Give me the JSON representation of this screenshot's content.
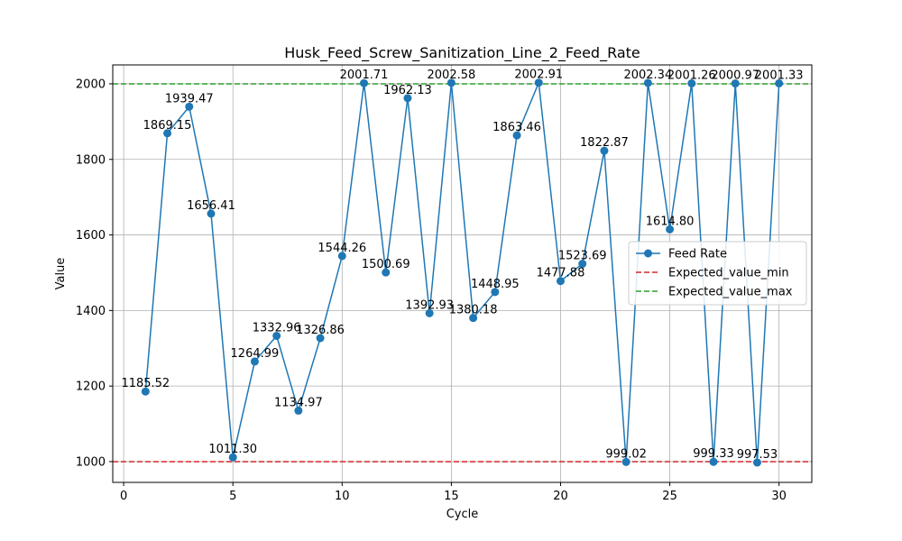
{
  "chart_data": {
    "type": "line",
    "title": "Husk_Feed_Screw_Sanitization_Line_2_Feed_Rate",
    "xlabel": "Cycle",
    "ylabel": "Value",
    "xlim": [
      -0.5,
      31.5
    ],
    "ylim": [
      945,
      2050
    ],
    "xticks": [
      0,
      5,
      10,
      15,
      20,
      25,
      30
    ],
    "yticks": [
      1000,
      1200,
      1400,
      1600,
      1800,
      2000
    ],
    "grid": true,
    "legend_position": "center-right",
    "series": [
      {
        "name": "Feed Rate",
        "color": "#1f77b4",
        "marker": "circle",
        "x": [
          1,
          2,
          3,
          4,
          5,
          6,
          7,
          8,
          9,
          10,
          11,
          12,
          13,
          14,
          15,
          16,
          17,
          18,
          19,
          20,
          21,
          22,
          23,
          24,
          25,
          26,
          27,
          28,
          29,
          30
        ],
        "values": [
          1185.52,
          1869.15,
          1939.47,
          1656.41,
          1011.3,
          1264.99,
          1332.96,
          1134.97,
          1326.86,
          1544.26,
          2001.71,
          1500.69,
          1962.13,
          1392.93,
          2002.58,
          1380.18,
          1448.95,
          1863.46,
          2002.91,
          1477.88,
          1523.69,
          1822.87,
          999.02,
          2002.34,
          1614.8,
          2001.26,
          999.33,
          2000.97,
          997.53,
          2001.33
        ],
        "labels": [
          "1185.52",
          "1869.15",
          "1939.47",
          "1656.41",
          "1011.30",
          "1264.99",
          "1332.96",
          "1134.97",
          "1326.86",
          "1544.26",
          "2001.71",
          "1500.69",
          "1962.13",
          "1392.93",
          "2002.58",
          "1380.18",
          "1448.95",
          "1863.46",
          "2002.91",
          "1477.88",
          "1523.69",
          "1822.87",
          "999.02",
          "2002.34",
          "1614.80",
          "2001.26",
          "999.33",
          "2000.97",
          "997.53",
          "2001.33"
        ]
      }
    ],
    "reference_lines": [
      {
        "name": "Expected_value_min",
        "value": 1000,
        "color": "#d62728"
      },
      {
        "name": "Expected_value_max",
        "value": 2000,
        "color": "#2ca02c"
      }
    ]
  }
}
